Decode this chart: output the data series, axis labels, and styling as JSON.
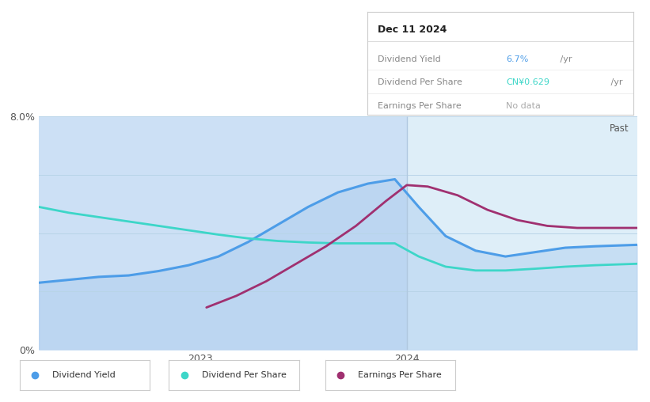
{
  "bg_color": "#ffffff",
  "chart_bg_color": "#cce0f5",
  "future_bg_color": "#deeef8",
  "past_label": "Past",
  "vertical_line_x": 0.615,
  "ylim": [
    0,
    8.0
  ],
  "y_ticks": [
    0,
    2.0,
    4.0,
    6.0,
    8.0
  ],
  "y_tick_labels": [
    "0%",
    "",
    "",
    "",
    "8.0%"
  ],
  "x_tick_positions": [
    0.27,
    0.615
  ],
  "x_ticks": [
    "2023",
    "2024"
  ],
  "dividend_yield": {
    "x": [
      0.0,
      0.05,
      0.1,
      0.15,
      0.2,
      0.25,
      0.3,
      0.35,
      0.4,
      0.45,
      0.5,
      0.55,
      0.595,
      0.635,
      0.68,
      0.73,
      0.78,
      0.83,
      0.88,
      0.93,
      1.0
    ],
    "y": [
      2.3,
      2.4,
      2.5,
      2.55,
      2.7,
      2.9,
      3.2,
      3.7,
      4.3,
      4.9,
      5.4,
      5.7,
      5.85,
      4.9,
      3.9,
      3.4,
      3.2,
      3.35,
      3.5,
      3.55,
      3.6
    ],
    "color": "#4d9de8",
    "linewidth": 2.2
  },
  "dividend_per_share": {
    "x": [
      0.0,
      0.05,
      0.1,
      0.15,
      0.2,
      0.25,
      0.3,
      0.35,
      0.4,
      0.45,
      0.5,
      0.55,
      0.595,
      0.635,
      0.68,
      0.73,
      0.78,
      0.83,
      0.88,
      0.93,
      1.0
    ],
    "y": [
      4.9,
      4.7,
      4.55,
      4.4,
      4.25,
      4.1,
      3.95,
      3.82,
      3.73,
      3.68,
      3.65,
      3.65,
      3.65,
      3.2,
      2.85,
      2.72,
      2.72,
      2.78,
      2.85,
      2.9,
      2.95
    ],
    "color": "#3dd6c8",
    "linewidth": 2.0
  },
  "earnings_per_share": {
    "x": [
      0.28,
      0.33,
      0.38,
      0.43,
      0.48,
      0.53,
      0.58,
      0.615,
      0.65,
      0.7,
      0.75,
      0.8,
      0.85,
      0.9,
      0.95,
      1.0
    ],
    "y": [
      1.45,
      1.85,
      2.35,
      2.95,
      3.55,
      4.25,
      5.1,
      5.65,
      5.6,
      5.3,
      4.8,
      4.45,
      4.25,
      4.18,
      4.18,
      4.18
    ],
    "color": "#a03070",
    "linewidth": 2.0
  },
  "fill_color": "#aaccee",
  "fill_alpha": 0.45,
  "tooltip": {
    "date": "Dec 11 2024",
    "rows": [
      {
        "label": "Dividend Yield",
        "value": "6.7%",
        "unit": "/yr",
        "value_color": "#4d9de8"
      },
      {
        "label": "Dividend Per Share",
        "value": "CN¥0.629",
        "unit": "/yr",
        "value_color": "#3dd6c8"
      },
      {
        "label": "Earnings Per Share",
        "value": "No data",
        "unit": "",
        "value_color": "#aaaaaa"
      }
    ]
  },
  "legend": [
    {
      "label": "Dividend Yield",
      "color": "#4d9de8"
    },
    {
      "label": "Dividend Per Share",
      "color": "#3dd6c8"
    },
    {
      "label": "Earnings Per Share",
      "color": "#a03070"
    }
  ]
}
